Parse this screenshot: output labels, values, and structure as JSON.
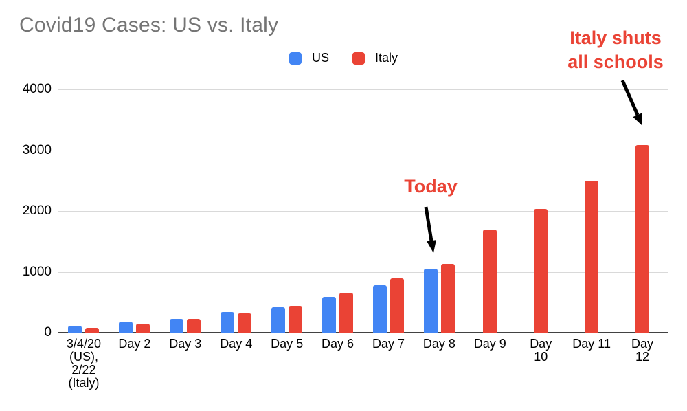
{
  "title": "Covid19 Cases: US vs. Italy",
  "legend": {
    "items": [
      {
        "label": "US",
        "color": "#4285f4"
      },
      {
        "label": "Italy",
        "color": "#ea4335"
      }
    ]
  },
  "annotations": {
    "today_label": "Today",
    "schools_label_line1": "Italy shuts",
    "schools_label_line2": "all schools",
    "color": "#ea4335",
    "arrow_color": "#000000"
  },
  "chart_data": {
    "type": "bar",
    "categories": [
      "3/4/20 (US), 2/22 (Italy)",
      "Day 2",
      "Day 3",
      "Day 4",
      "Day 5",
      "Day 6",
      "Day 7",
      "Day 8",
      "Day 9",
      "Day 10",
      "Day 11",
      "Day 12"
    ],
    "display_labels": [
      "3/4/20\n(US),\n2/22\n(Italy)",
      "Day 2",
      "Day 3",
      "Day 4",
      "Day 5",
      "Day 6",
      "Day 7",
      "Day 8",
      "Day 9",
      "Day\n10",
      "Day 11",
      "Day\n12"
    ],
    "series": [
      {
        "name": "US",
        "color": "#4285f4",
        "values": [
          118,
          176,
          223,
          341,
          417,
          583,
          778,
          1053,
          null,
          null,
          null,
          null
        ]
      },
      {
        "name": "Italy",
        "color": "#ea4335",
        "values": [
          79,
          150,
          227,
          320,
          445,
          650,
          888,
          1128,
          1694,
          2036,
          2502,
          3089
        ]
      }
    ],
    "title": "Covid19 Cases: US vs. Italy",
    "xlabel": "",
    "ylabel": "",
    "ylim": [
      0,
      4000
    ],
    "yticks": [
      0,
      1000,
      2000,
      3000,
      4000
    ],
    "grid": true,
    "legend_position": "top",
    "colors": {
      "gridline": "#d9d9d9",
      "axis_line": "#424242",
      "tick_text": "#000000",
      "title_text": "#757575"
    }
  }
}
